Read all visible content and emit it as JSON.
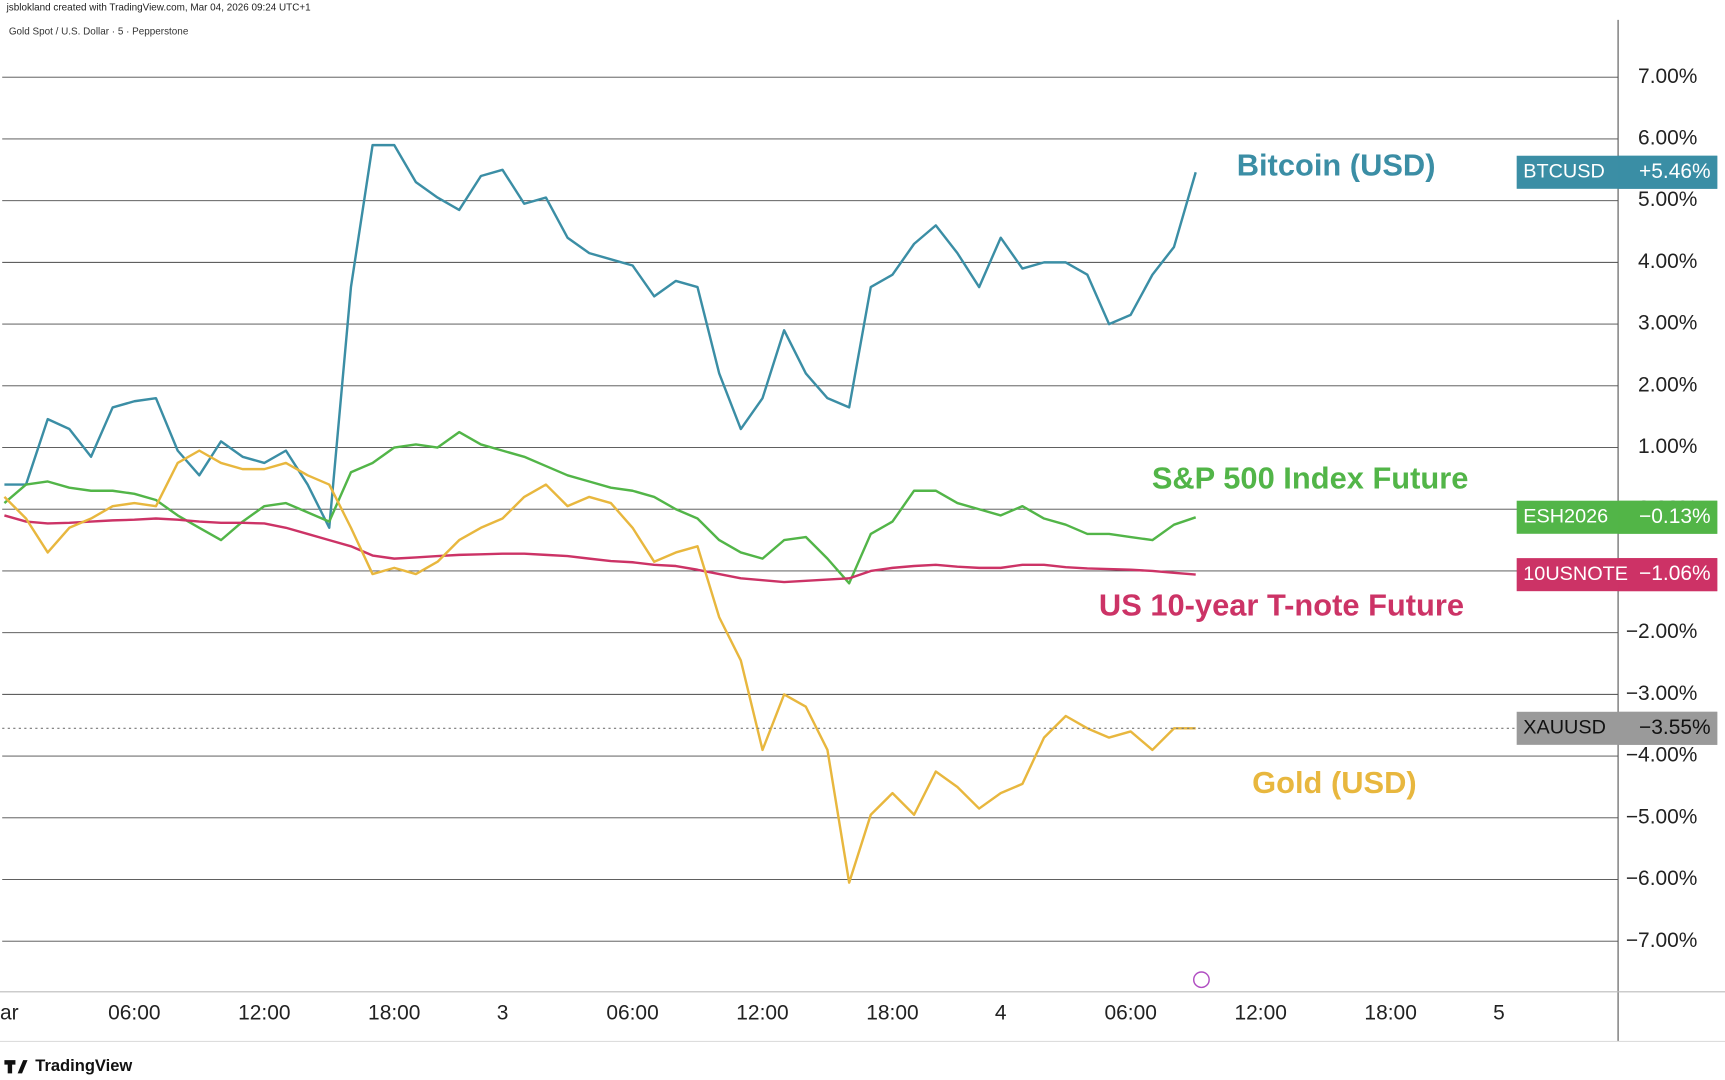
{
  "chart_data": {
    "type": "line",
    "header": "jsblokland created with TradingView.com, Mar 04, 2026 09:24 UTC+1",
    "subtitle": "Gold Spot / U.S. Dollar · 5 · Pepperstone",
    "brand": "TradingView",
    "x": [
      0,
      1,
      2,
      3,
      4,
      5,
      6,
      7,
      8,
      9,
      10,
      11,
      12,
      13,
      14,
      15,
      16,
      17,
      18,
      19,
      20,
      21,
      22,
      23,
      24,
      25,
      26,
      27,
      28,
      29,
      30,
      31,
      32,
      33,
      34,
      35,
      36,
      37,
      38,
      39,
      40,
      41,
      42,
      43,
      44,
      45,
      46,
      47,
      48,
      49,
      50,
      51,
      52,
      53,
      54,
      55
    ],
    "xlim": [
      -0.1,
      74.5
    ],
    "xticks": [
      {
        "value": 0,
        "label": "ar"
      },
      {
        "value": 6,
        "label": "06:00"
      },
      {
        "value": 12,
        "label": "12:00"
      },
      {
        "value": 18,
        "label": "18:00"
      },
      {
        "value": 23,
        "label": "3"
      },
      {
        "value": 29,
        "label": "06:00"
      },
      {
        "value": 35,
        "label": "12:00"
      },
      {
        "value": 41,
        "label": "18:00"
      },
      {
        "value": 46,
        "label": "4"
      },
      {
        "value": 52,
        "label": "06:00"
      },
      {
        "value": 58,
        "label": "12:00"
      },
      {
        "value": 64,
        "label": "18:00"
      },
      {
        "value": 69,
        "label": "5"
      }
    ],
    "ylim": [
      -7.82,
      7.93
    ],
    "yticks": [
      {
        "value": 7,
        "label": "7.00%"
      },
      {
        "value": 6,
        "label": "6.00%"
      },
      {
        "value": 5,
        "label": "5.00%"
      },
      {
        "value": 4,
        "label": "4.00%"
      },
      {
        "value": 3,
        "label": "3.00%"
      },
      {
        "value": 2,
        "label": "2.00%"
      },
      {
        "value": 1,
        "label": "1.00%"
      },
      {
        "value": 0,
        "label": "0.00%"
      },
      {
        "value": -1,
        "label": "−1.00%"
      },
      {
        "value": -2,
        "label": "−2.00%"
      },
      {
        "value": -3,
        "label": "−3.00%"
      },
      {
        "value": -4,
        "label": "−4.00%"
      },
      {
        "value": -5,
        "label": "−5.00%"
      },
      {
        "value": -6,
        "label": "−6.00%"
      },
      {
        "value": -7,
        "label": "−7.00%"
      }
    ],
    "grid": true,
    "series": [
      {
        "name": "BTCUSD",
        "annotation": "Bitcoin (USD)",
        "color": "#3b8ea5",
        "last_value_label": "+5.46%",
        "values": [
          0.4,
          0.4,
          1.46,
          1.3,
          0.85,
          1.65,
          1.75,
          1.8,
          0.95,
          0.55,
          1.1,
          0.85,
          0.75,
          0.95,
          0.4,
          -0.3,
          3.6,
          5.9,
          5.9,
          5.3,
          5.05,
          4.85,
          5.4,
          5.5,
          4.95,
          5.05,
          4.4,
          4.15,
          4.05,
          3.95,
          3.45,
          3.7,
          3.6,
          2.2,
          1.3,
          1.8,
          2.9,
          2.2,
          1.8,
          1.65,
          3.6,
          3.8,
          4.3,
          4.6,
          4.15,
          3.6,
          4.4,
          3.9,
          4.0,
          4.0,
          3.8,
          3.0,
          3.15,
          3.8,
          4.25,
          5.46
        ]
      },
      {
        "name": "ESH2026",
        "annotation": "S&P 500 Index Future",
        "color": "#52b548",
        "last_value_label": "−0.13%",
        "values": [
          0.1,
          0.4,
          0.45,
          0.35,
          0.3,
          0.3,
          0.25,
          0.15,
          -0.1,
          -0.3,
          -0.5,
          -0.2,
          0.05,
          0.1,
          -0.05,
          -0.2,
          0.6,
          0.75,
          1.0,
          1.05,
          1.0,
          1.25,
          1.05,
          0.95,
          0.85,
          0.7,
          0.55,
          0.45,
          0.35,
          0.3,
          0.2,
          0.0,
          -0.15,
          -0.5,
          -0.7,
          -0.8,
          -0.5,
          -0.45,
          -0.8,
          -1.2,
          -0.4,
          -0.2,
          0.3,
          0.3,
          0.1,
          0.0,
          -0.1,
          0.05,
          -0.15,
          -0.25,
          -0.4,
          -0.4,
          -0.45,
          -0.5,
          -0.25,
          -0.13
        ]
      },
      {
        "name": "10USNOTE",
        "annotation": "US 10-year T-note Future",
        "color": "#cc3366",
        "last_value_label": "−1.06%",
        "values": [
          -0.1,
          -0.2,
          -0.23,
          -0.22,
          -0.2,
          -0.18,
          -0.17,
          -0.15,
          -0.17,
          -0.2,
          -0.22,
          -0.22,
          -0.23,
          -0.3,
          -0.4,
          -0.5,
          -0.6,
          -0.75,
          -0.8,
          -0.78,
          -0.76,
          -0.74,
          -0.73,
          -0.72,
          -0.72,
          -0.74,
          -0.76,
          -0.8,
          -0.84,
          -0.86,
          -0.9,
          -0.92,
          -0.98,
          -1.05,
          -1.12,
          -1.15,
          -1.18,
          -1.16,
          -1.14,
          -1.12,
          -1.0,
          -0.95,
          -0.92,
          -0.9,
          -0.93,
          -0.95,
          -0.95,
          -0.9,
          -0.9,
          -0.94,
          -0.96,
          -0.97,
          -0.98,
          -1.0,
          -1.03,
          -1.06
        ]
      },
      {
        "name": "XAUUSD",
        "annotation": "Gold (USD)",
        "color": "#e8b73e",
        "last_value_label": "−3.55%",
        "values": [
          0.2,
          -0.15,
          -0.7,
          -0.3,
          -0.15,
          0.05,
          0.1,
          0.05,
          0.75,
          0.95,
          0.75,
          0.65,
          0.65,
          0.75,
          0.55,
          0.4,
          -0.3,
          -1.05,
          -0.95,
          -1.05,
          -0.85,
          -0.5,
          -0.3,
          -0.15,
          0.2,
          0.4,
          0.05,
          0.2,
          0.1,
          -0.3,
          -0.85,
          -0.7,
          -0.6,
          -1.75,
          -2.45,
          -3.9,
          -3.0,
          -3.2,
          -3.9,
          -6.05,
          -4.95,
          -4.6,
          -4.95,
          -4.25,
          -4.5,
          -4.85,
          -4.6,
          -4.45,
          -3.7,
          -3.35,
          -3.55,
          -3.7,
          -3.6,
          -3.9,
          -3.55,
          -3.55
        ]
      }
    ]
  }
}
